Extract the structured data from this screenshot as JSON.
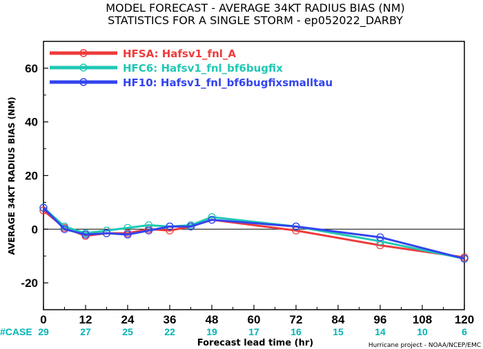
{
  "title_line1": "MODEL FORECAST - AVERAGE 34KT RADIUS BIAS (NM)",
  "title_line2": "STATISTICS FOR A SINGLE STORM - ep052022_DARBY",
  "credit": "Hurricane project - NOAA/NCEP/EMC",
  "case_label": "#CASE",
  "case_color": "#00b4b4",
  "chart_data": {
    "type": "line",
    "xlabel": "Forecast lead time (hr)",
    "ylabel": "AVERAGE 34KT RADIUS BIAS (NM)",
    "xlim": [
      0,
      120
    ],
    "ylim": [
      -30,
      70
    ],
    "x_ticks": [
      0,
      12,
      24,
      36,
      48,
      60,
      72,
      84,
      96,
      108,
      120
    ],
    "y_ticks": [
      -20,
      0,
      20,
      40,
      60
    ],
    "zero_line": true,
    "legend_position": "top-left",
    "x": [
      0,
      6,
      12,
      18,
      24,
      30,
      36,
      42,
      48,
      72,
      96,
      120
    ],
    "series": [
      {
        "name": "HFSA: Hafsv1_fnl_A",
        "color": "#ee3b3b",
        "values": [
          7,
          0.5,
          -2.5,
          -1.5,
          -1.5,
          0,
          -0.5,
          1,
          3.5,
          -0.5,
          -6,
          -10.5
        ]
      },
      {
        "name": "HFC6: Hafsv1_fnl_bf6bugfix",
        "color": "#20c8b4",
        "values": [
          8,
          1,
          -1.5,
          -0.5,
          0.5,
          1.5,
          1,
          1.5,
          4.5,
          1,
          -4.5,
          -11
        ]
      },
      {
        "name": "HF10: Hafsv1_fnl_bf6bugfixsmalltau",
        "color": "#3344ee",
        "values": [
          8,
          0,
          -2,
          -1.5,
          -2,
          -0.5,
          1,
          1,
          3.5,
          1,
          -3,
          -11
        ]
      }
    ],
    "cases": {
      "x": [
        0,
        12,
        24,
        36,
        48,
        60,
        72,
        84,
        96,
        108,
        120
      ],
      "values": [
        29,
        27,
        25,
        22,
        19,
        17,
        16,
        15,
        14,
        10,
        6
      ]
    }
  }
}
